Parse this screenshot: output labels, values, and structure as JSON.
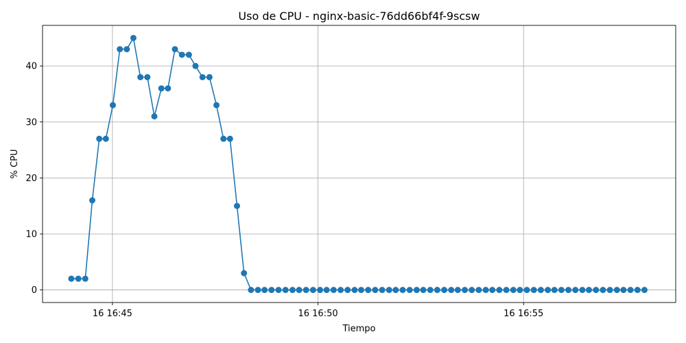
{
  "chart_data": {
    "type": "line",
    "title": "Uso de CPU - nginx-basic-76dd66bf4f-9scsw",
    "xlabel": "Tiempo",
    "ylabel": "% CPU",
    "x_unit": "minutes after 16 16:44",
    "x_tick_values": [
      1,
      6,
      11
    ],
    "x_tick_labels": [
      "16 16:45",
      "16 16:50",
      "16 16:55"
    ],
    "xlim": [
      -0.7,
      14.7
    ],
    "y_ticks": [
      0,
      10,
      20,
      30,
      40
    ],
    "ylim": [
      -2.25,
      47.25
    ],
    "grid": true,
    "color": "#1f77b4",
    "series": [
      {
        "x": [
          0.0,
          0.17,
          0.34,
          0.51,
          0.68,
          0.84,
          1.01,
          1.18,
          1.35,
          1.51,
          1.68,
          1.85,
          2.02,
          2.19,
          2.35,
          2.52,
          2.69,
          2.86,
          3.02,
          3.19,
          3.36,
          3.53,
          3.7,
          3.86,
          4.03,
          4.2,
          4.37,
          4.54,
          4.7,
          4.87,
          5.04,
          5.21,
          5.38,
          5.54,
          5.71,
          5.88,
          6.05,
          6.21,
          6.38,
          6.55,
          6.72,
          6.89,
          7.05,
          7.22,
          7.39,
          7.56,
          7.73,
          7.89,
          8.06,
          8.23,
          8.4,
          8.56,
          8.73,
          8.9,
          9.07,
          9.24,
          9.4,
          9.57,
          9.74,
          9.91,
          10.08,
          10.24,
          10.41,
          10.58,
          10.75,
          10.91,
          11.08,
          11.25,
          11.42,
          11.59,
          11.75,
          11.92,
          12.09,
          12.26,
          12.43,
          12.59,
          12.76,
          12.93,
          13.1,
          13.27,
          13.43,
          13.6,
          13.77,
          13.94
        ],
        "y": [
          2,
          2,
          2,
          16,
          27,
          27,
          33,
          43,
          43,
          45,
          38,
          38,
          31,
          36,
          36,
          43,
          42,
          42,
          40,
          38,
          38,
          33,
          27,
          27,
          15,
          3,
          0,
          0,
          0,
          0,
          0,
          0,
          0,
          0,
          0,
          0,
          0,
          0,
          0,
          0,
          0,
          0,
          0,
          0,
          0,
          0,
          0,
          0,
          0,
          0,
          0,
          0,
          0,
          0,
          0,
          0,
          0,
          0,
          0,
          0,
          0,
          0,
          0,
          0,
          0,
          0,
          0,
          0,
          0,
          0,
          0,
          0,
          0,
          0,
          0,
          0,
          0,
          0,
          0,
          0,
          0,
          0,
          0,
          0
        ]
      }
    ]
  }
}
